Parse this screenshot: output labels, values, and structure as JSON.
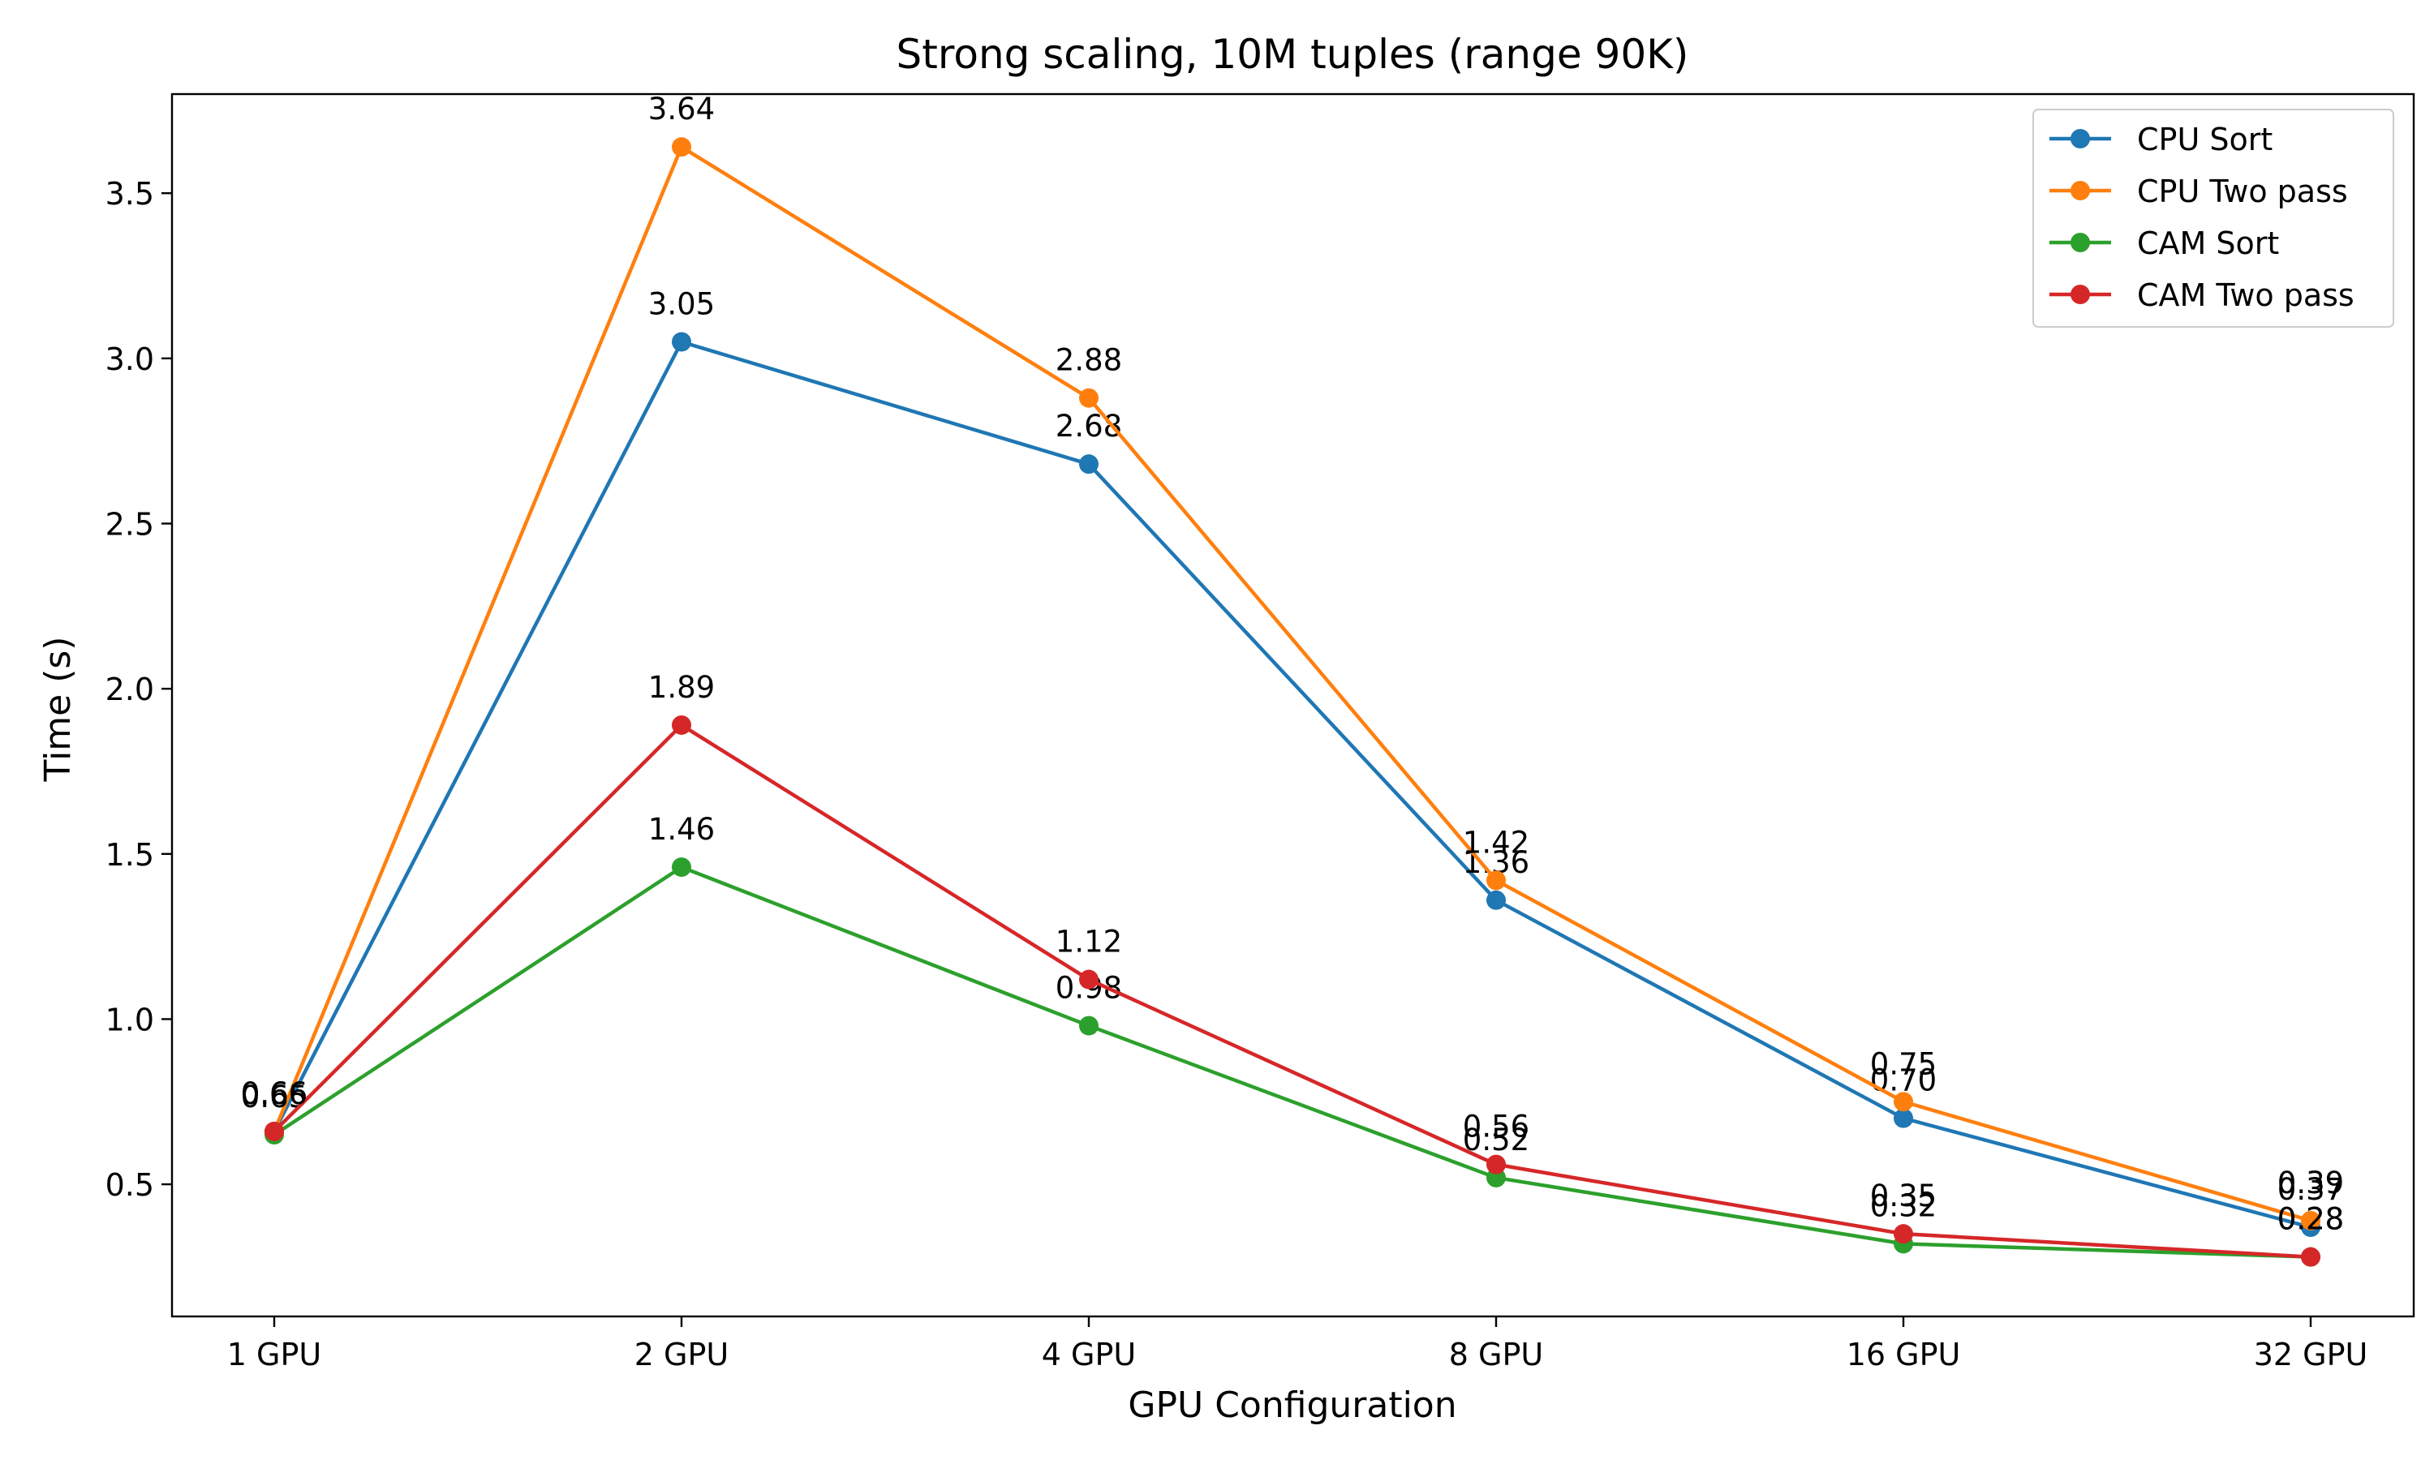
{
  "chart_data": {
    "type": "line",
    "title": "Strong scaling, 10M tuples (range 90K)",
    "xlabel": "GPU Configuration",
    "ylabel": "Time (s)",
    "categories": [
      "1 GPU",
      "2 GPU",
      "4 GPU",
      "8 GPU",
      "16 GPU",
      "32 GPU"
    ],
    "ylim": [
      0.1,
      3.8
    ],
    "yticks": [
      0.5,
      1.0,
      1.5,
      2.0,
      2.5,
      3.0,
      3.5
    ],
    "ytick_labels": [
      "0.5",
      "1.0",
      "1.5",
      "2.0",
      "2.5",
      "3.0",
      "3.5"
    ],
    "grid": false,
    "legend_position": "top-right",
    "series": [
      {
        "name": "CPU Sort",
        "color": "#1f77b4",
        "values": [
          0.66,
          3.05,
          2.68,
          1.36,
          0.7,
          0.37
        ],
        "labels": [
          "0.66",
          "3.05",
          "2.68",
          "1.36",
          "0.70",
          "0.37"
        ]
      },
      {
        "name": "CPU Two pass",
        "color": "#ff7f0e",
        "values": [
          0.66,
          3.64,
          2.88,
          1.42,
          0.75,
          0.39
        ],
        "labels": [
          "0.66",
          "3.64",
          "2.88",
          "1.42",
          "0.75",
          "0.39"
        ]
      },
      {
        "name": "CAM Sort",
        "color": "#2ca02c",
        "values": [
          0.65,
          1.46,
          0.98,
          0.52,
          0.32,
          0.28
        ],
        "labels": [
          "0.65",
          "1.46",
          "0.98",
          "0.52",
          "0.32",
          "0.28"
        ]
      },
      {
        "name": "CAM Two pass",
        "color": "#d62728",
        "values": [
          0.66,
          1.89,
          1.12,
          0.56,
          0.35,
          0.28
        ],
        "labels": [
          "0.66",
          "1.89",
          "1.12",
          "0.56",
          "0.35",
          "0.28"
        ]
      }
    ]
  }
}
